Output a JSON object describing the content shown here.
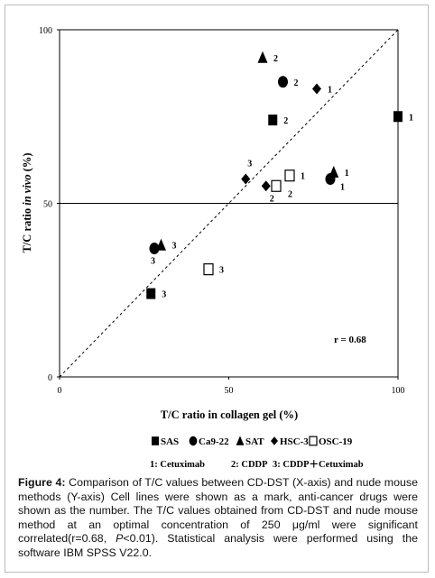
{
  "chart_data": {
    "type": "scatter",
    "x_label": "T/C ratio in collagen gel (%)",
    "y_label_parts": [
      "T/C ratio ",
      "in vivo",
      " (%)"
    ],
    "xlim": [
      0,
      100
    ],
    "ylim": [
      0,
      100
    ],
    "xticks": [
      0,
      50,
      100
    ],
    "yticks": [
      0,
      50,
      100
    ],
    "grid": true,
    "annotation": "r = 0.68",
    "series": [
      {
        "name": "SAS",
        "marker": "square",
        "color": "#000000",
        "x": [
          100,
          63,
          27
        ],
        "values": [
          75,
          74,
          24
        ],
        "point_labels": [
          "1",
          "2",
          "3"
        ]
      },
      {
        "name": "Ca9-22",
        "marker": "circle",
        "color": "#000000",
        "x": [
          80,
          66,
          28
        ],
        "values": [
          57,
          85,
          37
        ],
        "point_labels": [
          "1",
          "2",
          "3"
        ]
      },
      {
        "name": "SAT",
        "marker": "triangle",
        "color": "#000000",
        "x": [
          81,
          60,
          30
        ],
        "values": [
          59,
          92,
          38
        ],
        "point_labels": [
          "1",
          "2",
          "3"
        ]
      },
      {
        "name": "HSC-3",
        "marker": "diamond",
        "color": "#000000",
        "x": [
          76,
          61,
          55
        ],
        "values": [
          83,
          55,
          57
        ],
        "point_labels": [
          "1",
          "2",
          "3"
        ]
      },
      {
        "name": "OSC-19",
        "marker": "open-square",
        "color": "#000000",
        "x": [
          68,
          64,
          44
        ],
        "values": [
          58,
          55,
          31
        ],
        "point_labels": [
          "1",
          "2",
          "3"
        ]
      }
    ],
    "drug_legend": [
      "1: Cetuximab",
      "2: CDDP",
      "3: CDDP＋Cetuximab"
    ]
  },
  "caption": {
    "label": "Figure 4:",
    "parts": [
      " Comparison of T/C values between CD-DST (X-axis) and nude mouse methods (Y-axis) Cell lines were shown as a mark, anti-cancer drugs were shown as the number. The T/C values obtained from CD-DST and nude mouse method at an optimal concentration of 250 μg/ml were significant correlated(r=0.68, ",
      "P",
      "<0.01). Statistical analysis were performed using the software IBM SPSS V22.0."
    ]
  }
}
